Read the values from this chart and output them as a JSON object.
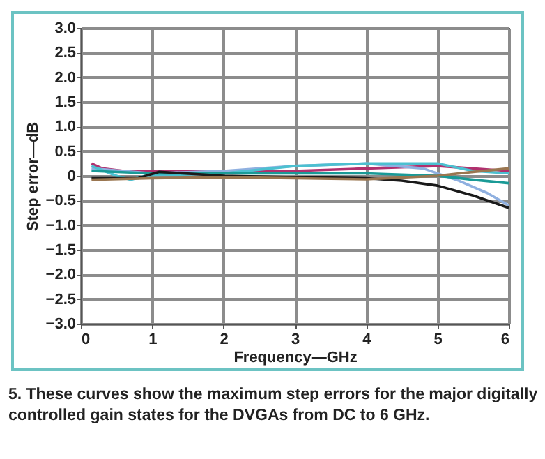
{
  "chart_data": {
    "type": "line",
    "xlabel": "Frequency—GHz",
    "ylabel": "Step error—dB",
    "annotations": [
      "5. These curves show the maximum step errors for the major digitally controlled gain states for the DVGAs from DC to 6 GHz."
    ],
    "xlim": [
      0,
      6
    ],
    "xticks": [
      0,
      1,
      2,
      3,
      4,
      5,
      6
    ],
    "ylim": [
      -3,
      3
    ],
    "yticks": [
      {
        "value": -3,
        "label": "−3.0"
      },
      {
        "value": -2.5,
        "label": "−2.5"
      },
      {
        "value": -2,
        "label": "−2.0"
      },
      {
        "value": -1.5,
        "label": "−1.5"
      },
      {
        "value": -1,
        "label": "−1.0"
      },
      {
        "value": -0.5,
        "label": "−0.5"
      },
      {
        "value": 0,
        "label": "0"
      },
      {
        "value": 0.5,
        "label": "0.5"
      },
      {
        "value": 1,
        "label": "1.0"
      },
      {
        "value": 1.5,
        "label": "1.5"
      },
      {
        "value": 2,
        "label": "2.0"
      },
      {
        "value": 2.5,
        "label": "2.5"
      },
      {
        "value": 3,
        "label": "3.0"
      }
    ],
    "grid": true,
    "marker": "none",
    "line_style": "solid",
    "series": [
      {
        "color": "#b0306e",
        "x": [
          0.15,
          0.3,
          0.6,
          1,
          2,
          3,
          4,
          5,
          6
        ],
        "values": [
          0.25,
          0.15,
          0.1,
          0.1,
          0.08,
          0.1,
          0.15,
          0.2,
          0.1
        ]
      },
      {
        "color": "#8fb0e0",
        "x": [
          0.15,
          1,
          2,
          3,
          4,
          4.8,
          5.3,
          5.7,
          6
        ],
        "values": [
          0.15,
          0.05,
          0.1,
          0.2,
          0.25,
          0.15,
          -0.1,
          -0.35,
          -0.6
        ]
      },
      {
        "color": "#4cc0d0",
        "x": [
          0.15,
          0.5,
          0.7,
          0.9,
          2,
          3,
          4,
          5,
          5.5,
          6
        ],
        "values": [
          0.2,
          0,
          -0.08,
          0,
          0.05,
          0.2,
          0.25,
          0.25,
          0.1,
          0.05
        ]
      },
      {
        "color": "#1a9a96",
        "x": [
          0.15,
          1,
          2,
          3,
          4,
          5,
          5.5,
          6
        ],
        "values": [
          0.1,
          0.05,
          0.05,
          0.05,
          0.05,
          0,
          -0.08,
          -0.15
        ]
      },
      {
        "color": "#1a1a1a",
        "x": [
          0.15,
          0.8,
          1.1,
          2,
          3,
          4,
          4.5,
          5,
          5.5,
          6
        ],
        "values": [
          -0.05,
          -0.05,
          0.08,
          0,
          -0.03,
          -0.05,
          -0.1,
          -0.2,
          -0.4,
          -0.65
        ]
      },
      {
        "color": "#9a7650",
        "x": [
          0.15,
          1,
          2,
          3,
          4,
          5,
          5.5,
          6
        ],
        "values": [
          -0.08,
          -0.05,
          -0.03,
          -0.05,
          -0.07,
          0,
          0.08,
          0.15
        ]
      }
    ]
  }
}
